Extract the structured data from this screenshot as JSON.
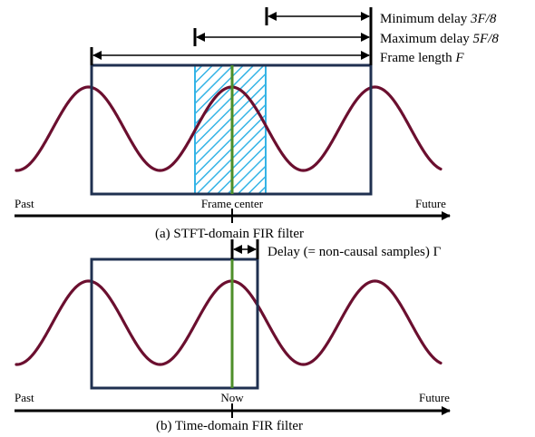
{
  "panel_a": {
    "annotations": {
      "min_delay_text": "Minimum delay ",
      "min_delay_math": "3F/8",
      "max_delay_text": "Maximum delay ",
      "max_delay_math": "5F/8",
      "frame_length_text": "Frame length ",
      "frame_length_math": "F"
    },
    "axis": {
      "past": "Past",
      "future": "Future",
      "center": "Frame center"
    },
    "caption": "(a) STFT-domain FIR filter"
  },
  "panel_b": {
    "annotations": {
      "delay_text": "Delay (= non-causal samples) ",
      "delay_math": "Γ"
    },
    "axis": {
      "past": "Past",
      "future": "Future",
      "center": "Now"
    },
    "caption": "(b) Time-domain FIR filter"
  },
  "colors": {
    "wave": "#6b0f2f",
    "frame": "#1f3050",
    "hatch": "#35b4e6",
    "center_line": "#4e8f2a",
    "axis": "#000000"
  }
}
